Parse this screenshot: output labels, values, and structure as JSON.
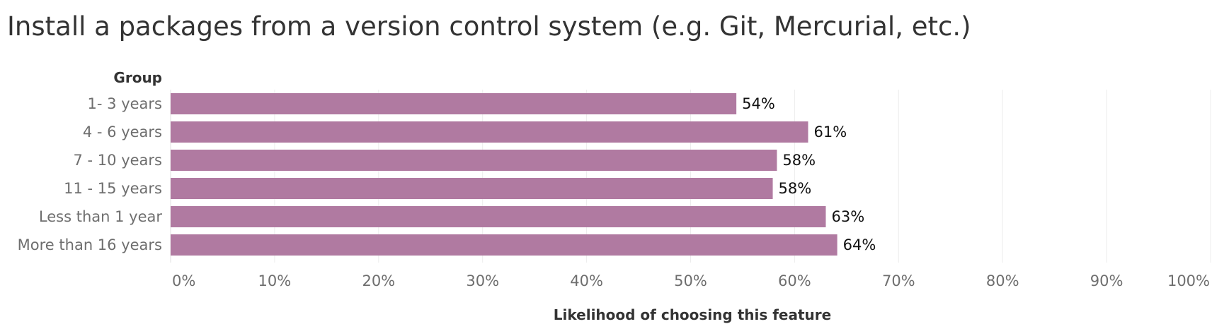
{
  "chart_data": {
    "type": "bar",
    "orientation": "horizontal",
    "title": "Install a packages from a version control system (e.g. Git, Mercurial, etc.)",
    "category_header": "Group",
    "categories": [
      "1- 3 years",
      "4 - 6 years",
      "7 - 10 years",
      "11 - 15 years",
      "Less than 1 year",
      "More than 16 years"
    ],
    "values": [
      54.4,
      61.3,
      58.3,
      57.9,
      63.0,
      64.1
    ],
    "data_labels": [
      "54%",
      "61%",
      "58%",
      "58%",
      "63%",
      "64%"
    ],
    "xlabel": "Likelihood of choosing this feature",
    "ylabel": "",
    "xlim": [
      0,
      100
    ],
    "x_ticks": [
      0,
      10,
      20,
      30,
      40,
      50,
      60,
      70,
      80,
      90,
      100
    ],
    "x_tick_labels": [
      "0%",
      "10%",
      "20%",
      "30%",
      "40%",
      "50%",
      "60%",
      "70%",
      "80%",
      "90%",
      "100%"
    ],
    "grid": "vertical",
    "legend": "none",
    "bar_color": "#b07aa1",
    "grid_color": "#ececec"
  }
}
